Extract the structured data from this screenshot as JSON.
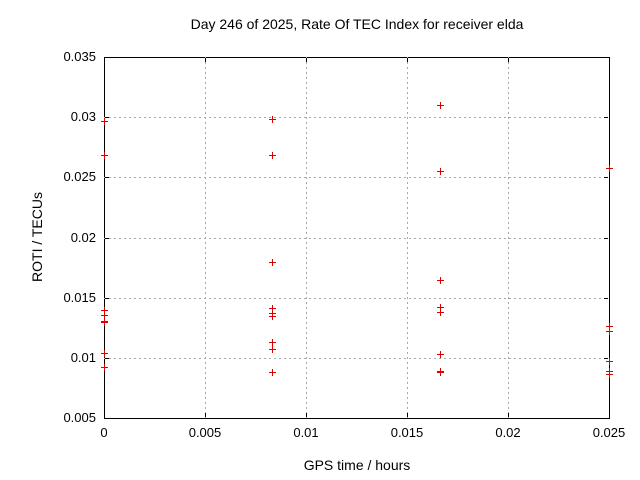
{
  "chart_data": {
    "type": "scatter",
    "title": "Day 246 of 2025, Rate Of TEC Index for receiver elda",
    "xlabel": "GPS time / hours",
    "ylabel": "ROTI / TECUs",
    "xlim": [
      0,
      0.025
    ],
    "ylim": [
      0.005,
      0.035
    ],
    "xticks": [
      0,
      0.005,
      0.01,
      0.015,
      0.02,
      0.025
    ],
    "xtick_labels": [
      "0",
      "0.005",
      "0.01",
      "0.015",
      "0.02",
      "0.025"
    ],
    "yticks": [
      0.005,
      0.01,
      0.015,
      0.02,
      0.025,
      0.03,
      0.035
    ],
    "ytick_labels": [
      "0.005",
      "0.01",
      "0.015",
      "0.02",
      "0.025",
      "0.03",
      "0.035"
    ],
    "grid": true,
    "legend": "none",
    "marker": "plus",
    "marker_color": "#dd0000",
    "series": [
      {
        "name": "ROTI",
        "points": [
          [
            0,
            0.0296
          ],
          [
            0,
            0.0268
          ],
          [
            0,
            0.0139
          ],
          [
            0,
            0.0135
          ],
          [
            0,
            0.013
          ],
          [
            0,
            0.0129
          ],
          [
            0,
            0.0104
          ],
          [
            0,
            0.0092
          ],
          [
            0.008333,
            0.0298
          ],
          [
            0.008333,
            0.0268
          ],
          [
            0.008333,
            0.0179
          ],
          [
            0.008333,
            0.0141
          ],
          [
            0.008333,
            0.0137
          ],
          [
            0.008333,
            0.0134
          ],
          [
            0.008333,
            0.0113
          ],
          [
            0.008333,
            0.0107
          ],
          [
            0.008333,
            0.0088
          ],
          [
            0.016667,
            0.031
          ],
          [
            0.016667,
            0.0255
          ],
          [
            0.016667,
            0.0164
          ],
          [
            0.016667,
            0.0142
          ],
          [
            0.016667,
            0.0138
          ],
          [
            0.016667,
            0.0103
          ],
          [
            0.016667,
            0.0089
          ],
          [
            0.016667,
            0.0088
          ],
          [
            0.025,
            0.0257
          ],
          [
            0.025,
            0.0126
          ],
          [
            0.025,
            0.0122
          ],
          [
            0.025,
            0.0097
          ],
          [
            0.025,
            0.0089
          ],
          [
            0.025,
            0.0086
          ]
        ]
      }
    ]
  }
}
